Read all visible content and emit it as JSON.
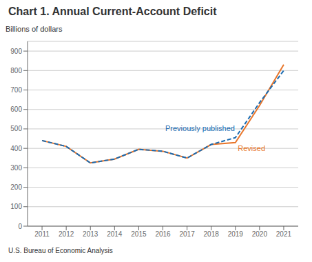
{
  "chart_data": {
    "type": "line",
    "title": "Chart 1. Annual Current-Account Deficit",
    "ylabel": "Billions of dollars",
    "footnote": "U.S. Bureau of Economic Analysis",
    "x": [
      2011,
      2012,
      2013,
      2014,
      2015,
      2016,
      2017,
      2018,
      2019,
      2020,
      2021
    ],
    "series": [
      {
        "name": "Revised",
        "color": "#E8752A",
        "line_style": "solid",
        "values": [
          440,
          410,
          325,
          345,
          395,
          385,
          350,
          420,
          430,
          620,
          830
        ]
      },
      {
        "name": "Previously published",
        "color": "#1B6BB0",
        "line_style": "dashed",
        "values": [
          440,
          410,
          325,
          345,
          395,
          385,
          350,
          420,
          455,
          635,
          800
        ]
      }
    ],
    "xlim": [
      2010.4,
      2021.6
    ],
    "xticks": [
      2011,
      2012,
      2013,
      2014,
      2015,
      2016,
      2017,
      2018,
      2019,
      2020,
      2021
    ],
    "ylim": [
      0,
      950
    ],
    "yticks": [
      0,
      100,
      200,
      300,
      400,
      500,
      600,
      700,
      800,
      900
    ],
    "grid": true,
    "annotations": [
      {
        "text": "Previously published",
        "x": 2016.1,
        "y": 488
      },
      {
        "text": "Revised",
        "x": 2019.1,
        "y": 416
      }
    ]
  }
}
